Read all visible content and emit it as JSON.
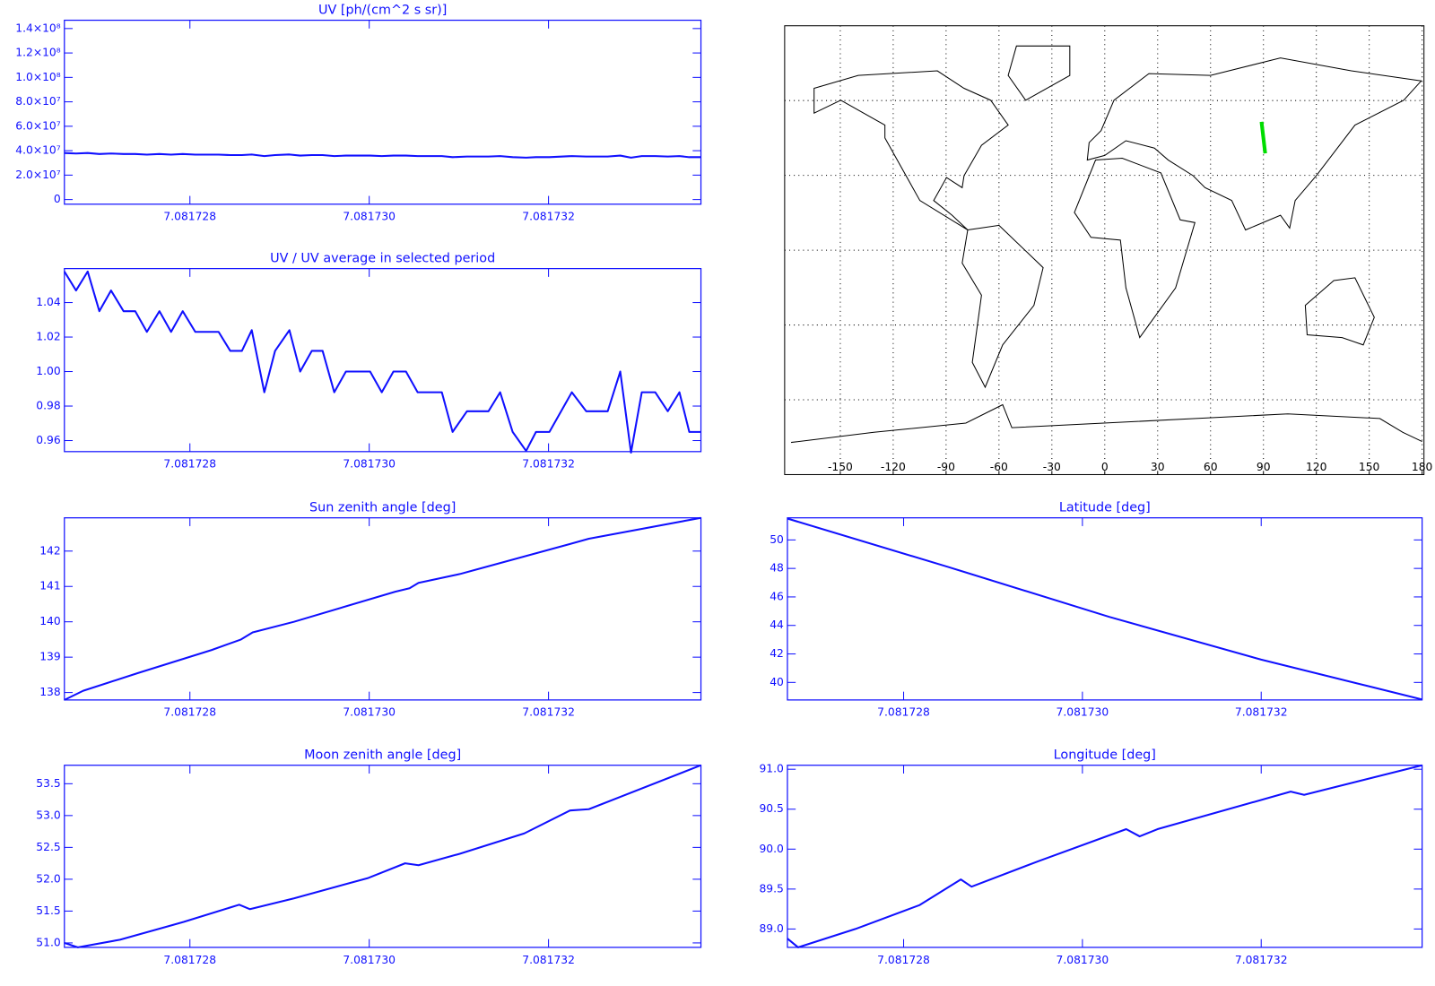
{
  "chart_data": [
    {
      "type": "line",
      "title": "UV [ph/(cm^2 s sr)]",
      "color": "#1010ff",
      "xlim": [
        7.0817266,
        7.0817337
      ],
      "xticks": [
        7.081728,
        {
          "value": 7.08173,
          "label": "7.081730"
        },
        7.081732
      ],
      "ylim": [
        -3800000,
        146800000
      ],
      "yticks": [
        0,
        {
          "value": 20000000,
          "label": "2.0×10⁷"
        },
        {
          "value": 40000000,
          "label": "4.0×10⁷"
        },
        {
          "value": 60000000,
          "label": "6.0×10⁷"
        },
        {
          "value": 80000000,
          "label": "8.0×10⁷"
        },
        {
          "value": 100000000,
          "label": "1.0×10⁸"
        },
        {
          "value": 120000000,
          "label": "1.2×10⁸"
        },
        {
          "value": 140000000,
          "label": "1.4×10⁸"
        }
      ],
      "x": [
        7.0817266,
        7.08172673,
        7.08172686,
        7.08172699,
        7.08172712,
        7.08172726,
        7.08172739,
        7.08172752,
        7.08172766,
        7.08172779,
        7.08172792,
        7.08172806,
        7.08172832,
        7.08172845,
        7.08172858,
        7.08172869,
        7.08172883,
        7.08172895,
        7.08172911,
        7.08172923,
        7.08172936,
        7.08172948,
        7.08172961,
        7.08172974,
        7.08173001,
        7.08173014,
        7.08173027,
        7.08173041,
        7.08173054,
        7.08173081,
        7.08173093,
        7.08173109,
        7.08173133,
        7.08173146,
        7.0817316,
        7.08173175,
        7.08173186,
        7.08173201,
        7.08173226,
        7.08173242,
        7.08173266,
        7.0817328,
        7.08173292,
        7.08173304,
        7.08173319,
        7.08173333,
        7.08173346,
        7.08173357,
        7.0817337
      ],
      "values": [
        38100000,
        37700000,
        38100000,
        37300000,
        37700000,
        37300000,
        37300000,
        36800000,
        37300000,
        36800000,
        37300000,
        36800000,
        36800000,
        36400000,
        36400000,
        36900000,
        35600000,
        36400000,
        36900000,
        36000000,
        36400000,
        36400000,
        35600000,
        36000000,
        36000000,
        35600000,
        36000000,
        36000000,
        35600000,
        35600000,
        34700000,
        35200000,
        35200000,
        35600000,
        34700000,
        34300000,
        34700000,
        34700000,
        35600000,
        35200000,
        35200000,
        36000000,
        34300000,
        35600000,
        35600000,
        35200000,
        35600000,
        34700000,
        34700000
      ]
    },
    {
      "type": "map",
      "color": "#00dd00",
      "xlim": [
        -180,
        180
      ],
      "xticks": [
        -150,
        -120,
        -90,
        -60,
        -30,
        0,
        30,
        60,
        90,
        120,
        150,
        180
      ],
      "ylim": [
        -90,
        90
      ],
      "yticks": [
        -60,
        -30,
        0,
        30,
        60
      ],
      "x": [
        88.9,
        91.0
      ],
      "values": [
        51.5,
        38.8
      ]
    },
    {
      "type": "line",
      "title": "UV / UV average in selected period",
      "color": "#1010ff",
      "xlim": [
        7.0817266,
        7.0817337
      ],
      "xticks": [
        7.081728,
        {
          "value": 7.08173,
          "label": "7.081730"
        },
        7.081732
      ],
      "ylim": [
        0.9536,
        1.0597
      ],
      "yticks": [
        0.96,
        0.98,
        {
          "value": 1,
          "label": "1.00"
        },
        1.02,
        1.04
      ],
      "x": [
        7.0817266,
        7.08172673,
        7.08172686,
        7.08172699,
        7.08172712,
        7.08172726,
        7.08172739,
        7.08172752,
        7.08172766,
        7.08172779,
        7.08172792,
        7.08172806,
        7.08172832,
        7.08172845,
        7.08172858,
        7.08172869,
        7.08172883,
        7.08172895,
        7.08172911,
        7.08172923,
        7.08172936,
        7.08172948,
        7.08172961,
        7.08172974,
        7.08173001,
        7.08173014,
        7.08173027,
        7.08173041,
        7.08173054,
        7.08173081,
        7.08173093,
        7.08173109,
        7.08173133,
        7.08173146,
        7.0817316,
        7.08173175,
        7.08173186,
        7.08173201,
        7.08173226,
        7.08173242,
        7.08173266,
        7.0817328,
        7.08173292,
        7.08173304,
        7.08173319,
        7.08173333,
        7.08173346,
        7.08173357,
        7.0817337
      ],
      "values": [
        1.058,
        1.047,
        1.058,
        1.035,
        1.047,
        1.035,
        1.035,
        1.023,
        1.035,
        1.023,
        1.035,
        1.023,
        1.023,
        1.012,
        1.012,
        1.024,
        0.988,
        1.012,
        1.024,
        1.0,
        1.012,
        1.012,
        0.988,
        1.0,
        1.0,
        0.988,
        1.0,
        1.0,
        0.988,
        0.988,
        0.965,
        0.977,
        0.977,
        0.988,
        0.965,
        0.954,
        0.965,
        0.965,
        0.988,
        0.977,
        0.977,
        1.0,
        0.953,
        0.988,
        0.988,
        0.977,
        0.988,
        0.965,
        0.965
      ]
    },
    {
      "type": "line",
      "title": "Sun zenith angle [deg]",
      "color": "#1010ff",
      "xlim": [
        7.0817266,
        7.0817337
      ],
      "xticks": [
        7.081728,
        {
          "value": 7.08173,
          "label": "7.081730"
        },
        7.081732
      ],
      "ylim": [
        137.79,
        142.94
      ],
      "yticks": [
        138,
        139,
        140,
        141,
        142
      ],
      "x": [
        7.0817266,
        7.08172681,
        7.08172742,
        7.08172824,
        7.08172857,
        7.0817287,
        7.08172916,
        7.08173029,
        7.08173045,
        7.08173055,
        7.08173101,
        7.08173224,
        7.08173245,
        7.0817337
      ],
      "values": [
        137.79,
        138.05,
        138.55,
        139.2,
        139.5,
        139.7,
        140.0,
        140.85,
        140.95,
        141.1,
        141.35,
        142.2,
        142.35,
        142.94
      ]
    },
    {
      "type": "line",
      "title": "Latitude [deg]",
      "color": "#1010ff",
      "xlim": [
        7.0817267,
        7.0817338
      ],
      "xticks": [
        7.081728,
        {
          "value": 7.08173,
          "label": "7.081730"
        },
        7.081732
      ],
      "ylim": [
        38.77,
        51.55
      ],
      "yticks": [
        40,
        42,
        44,
        46,
        48,
        50
      ],
      "x": [
        7.0817267,
        7.0817285,
        7.0817303,
        7.081732,
        7.0817338
      ],
      "values": [
        51.5,
        48.1,
        44.6,
        41.6,
        38.8
      ]
    },
    {
      "type": "line",
      "title": "Moon zenith angle [deg]",
      "color": "#1010ff",
      "xlim": [
        7.0817266,
        7.0817337
      ],
      "xticks": [
        7.081728,
        {
          "value": 7.08173,
          "label": "7.081730"
        },
        7.081732
      ],
      "ylim": [
        50.93,
        53.79
      ],
      "yticks": [
        {
          "value": 51,
          "label": "51.0"
        },
        51.5,
        {
          "value": 52,
          "label": "52.0"
        },
        52.5,
        {
          "value": 53,
          "label": "53.0"
        },
        53.5
      ],
      "x": [
        7.0817266,
        7.08172675,
        7.08172722,
        7.08172773,
        7.08172793,
        7.08172855,
        7.08172867,
        7.08172916,
        7.08172999,
        7.0817304,
        7.08173055,
        7.08173101,
        7.08173173,
        7.08173224,
        7.08173245,
        7.0817337
      ],
      "values": [
        51.0,
        50.93,
        51.05,
        51.25,
        51.33,
        51.6,
        51.53,
        51.7,
        52.02,
        52.25,
        52.22,
        52.4,
        52.72,
        53.08,
        53.1,
        53.79
      ]
    },
    {
      "type": "line",
      "title": "Longitude [deg]",
      "color": "#1010ff",
      "xlim": [
        7.0817267,
        7.0817338
      ],
      "xticks": [
        7.081728,
        {
          "value": 7.08173,
          "label": "7.081730"
        },
        7.081732
      ],
      "ylim": [
        88.77,
        91.05
      ],
      "yticks": [
        {
          "value": 89,
          "label": "89.0"
        },
        89.5,
        {
          "value": 90,
          "label": "90.0"
        },
        90.5,
        {
          "value": 91,
          "label": "91.0"
        }
      ],
      "x": [
        7.0817267,
        7.08172682,
        7.08172746,
        7.08172818,
        7.08172864,
        7.08172876,
        7.08172951,
        7.08173049,
        7.08173064,
        7.08173084,
        7.08173233,
        7.08173248,
        7.0817338
      ],
      "values": [
        88.88,
        88.77,
        89.0,
        89.3,
        89.62,
        89.53,
        89.85,
        90.25,
        90.16,
        90.25,
        90.72,
        90.68,
        91.05
      ]
    }
  ]
}
